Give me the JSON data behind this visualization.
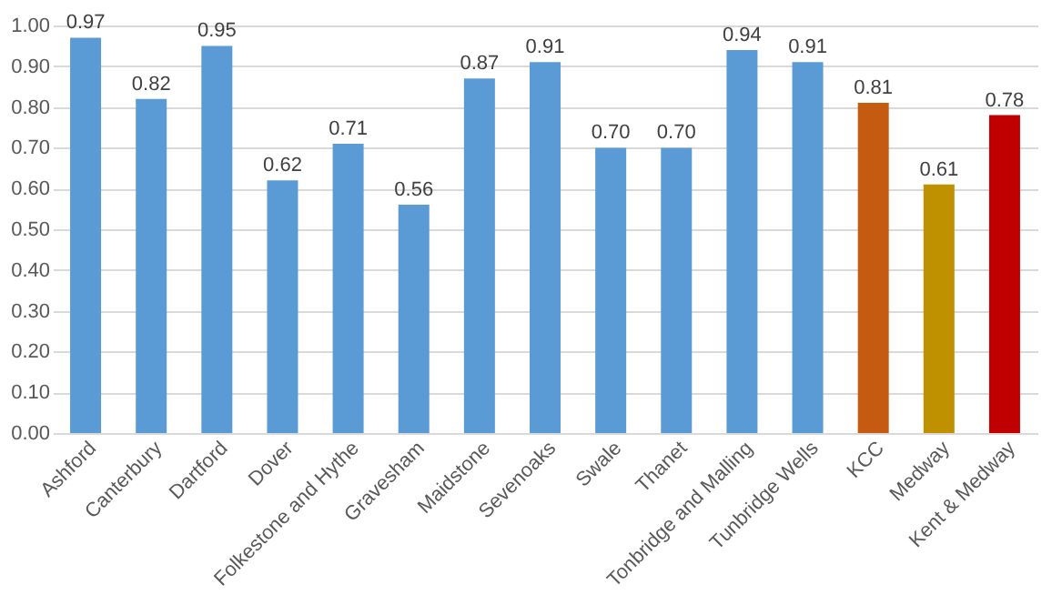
{
  "chart_data": {
    "type": "bar",
    "categories": [
      "Ashford",
      "Canterbury",
      "Dartford",
      "Dover",
      "Folkestone and Hythe",
      "Gravesham",
      "Maidstone",
      "Sevenoaks",
      "Swale",
      "Thanet",
      "Tonbridge and Malling",
      "Tunbridge Wells",
      "KCC",
      "Medway",
      "Kent & Medway"
    ],
    "values": [
      0.97,
      0.82,
      0.95,
      0.62,
      0.71,
      0.56,
      0.87,
      0.91,
      0.7,
      0.7,
      0.94,
      0.91,
      0.81,
      0.61,
      0.78
    ],
    "value_labels": [
      "0.97",
      "0.82",
      "0.95",
      "0.62",
      "0.71",
      "0.56",
      "0.87",
      "0.91",
      "0.70",
      "0.70",
      "0.94",
      "0.91",
      "0.81",
      "0.61",
      "0.78"
    ],
    "colors": [
      "#5b9bd5",
      "#5b9bd5",
      "#5b9bd5",
      "#5b9bd5",
      "#5b9bd5",
      "#5b9bd5",
      "#5b9bd5",
      "#5b9bd5",
      "#5b9bd5",
      "#5b9bd5",
      "#5b9bd5",
      "#5b9bd5",
      "#c55a11",
      "#bf9000",
      "#c00000"
    ],
    "ylim": [
      0,
      1.0
    ],
    "yticks": [
      {
        "value": 0,
        "label": "0.00"
      },
      {
        "value": 0.1,
        "label": "0.10"
      },
      {
        "value": 0.2,
        "label": "0.20"
      },
      {
        "value": 0.3,
        "label": "0.30"
      },
      {
        "value": 0.4,
        "label": "0.40"
      },
      {
        "value": 0.5,
        "label": "0.50"
      },
      {
        "value": 0.6,
        "label": "0.60"
      },
      {
        "value": 0.7,
        "label": "0.70"
      },
      {
        "value": 0.8,
        "label": "0.80"
      },
      {
        "value": 0.9,
        "label": "0.90"
      },
      {
        "value": 1.0,
        "label": "1.00"
      }
    ],
    "grid": "y",
    "legend": false
  }
}
